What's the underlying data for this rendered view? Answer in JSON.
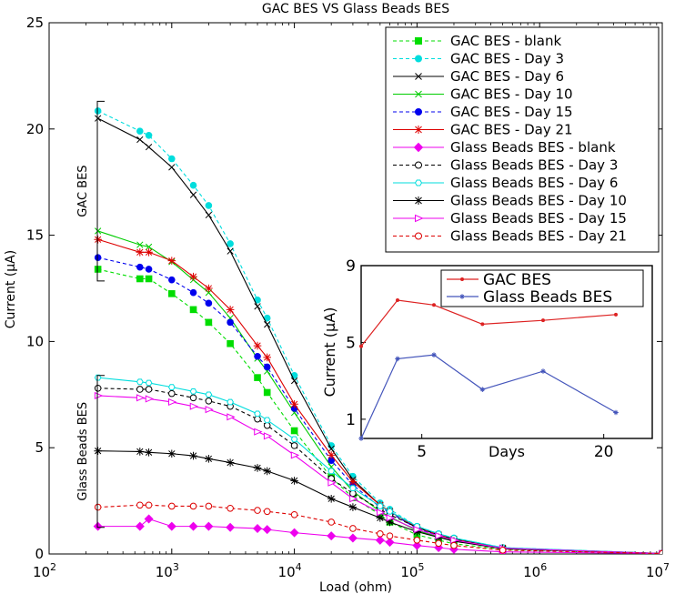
{
  "chart_data": [
    {
      "type": "line",
      "title": "GAC BES VS Glass Beads BES",
      "xlabel": "Load (ohm)",
      "ylabel": "Current (μA)",
      "xscale": "log",
      "xlim": [
        100,
        10000000
      ],
      "ylim": [
        0,
        25
      ],
      "x_tick_values": [
        100,
        1000,
        10000,
        100000,
        1000000,
        10000000
      ],
      "x_tick_labels": [
        {
          "base": "10",
          "exp": "2"
        },
        {
          "base": "10",
          "exp": "3"
        },
        {
          "base": "10",
          "exp": "4"
        },
        {
          "base": "10",
          "exp": "5"
        },
        {
          "base": "10",
          "exp": "6"
        },
        {
          "base": "10",
          "exp": "7"
        }
      ],
      "y_ticks": [
        0,
        5,
        10,
        15,
        20,
        25
      ],
      "y_tick_labels": [
        "0",
        "5",
        "10",
        "15",
        "20",
        "25"
      ],
      "legend_position": "top-right",
      "x": [
        250,
        550,
        650,
        1000,
        1500,
        2000,
        3000,
        5000,
        6000,
        10000,
        20000,
        30000,
        50000,
        60000,
        100000,
        150000,
        200000,
        500000,
        10000000
      ],
      "series": [
        {
          "name": "GAC BES - blank",
          "color": "#00dd00",
          "dash": "4,3",
          "marker": "square",
          "fill": "#00dd00",
          "values": [
            13.4,
            12.95,
            12.95,
            12.25,
            11.5,
            10.9,
            9.9,
            8.3,
            7.6,
            5.8,
            3.6,
            2.65,
            1.85,
            1.5,
            0.9,
            0.65,
            0.48,
            0.22,
            0.02
          ]
        },
        {
          "name": "GAC BES - Day 3",
          "color": "#00dddd",
          "dash": "4,3",
          "marker": "circle",
          "fill": "#00dddd",
          "values": [
            20.85,
            19.9,
            19.7,
            18.6,
            17.35,
            16.4,
            14.6,
            11.95,
            11.1,
            8.4,
            5.1,
            3.65,
            2.4,
            2.1,
            1.3,
            0.95,
            0.75,
            0.3,
            0.02
          ]
        },
        {
          "name": "GAC BES - Day 6",
          "color": "#000000",
          "dash": "",
          "marker": "x",
          "fill": "none",
          "values": [
            20.5,
            19.5,
            19.15,
            18.2,
            16.9,
            15.95,
            14.25,
            11.65,
            10.8,
            8.15,
            4.95,
            3.5,
            2.3,
            2.0,
            1.25,
            0.9,
            0.7,
            0.28,
            0.02
          ]
        },
        {
          "name": "GAC BES - Day 10",
          "color": "#00cc00",
          "dash": "",
          "marker": "x",
          "fill": "none",
          "values": [
            15.2,
            14.55,
            14.45,
            13.75,
            12.9,
            12.3,
            11.1,
            9.2,
            8.6,
            6.65,
            4.1,
            2.95,
            2.0,
            1.75,
            1.1,
            0.8,
            0.62,
            0.25,
            0.02
          ]
        },
        {
          "name": "GAC BES - Day 15",
          "color": "#0000ee",
          "dash": "4,3",
          "marker": "circle",
          "fill": "#0000ee",
          "values": [
            13.95,
            13.5,
            13.4,
            12.9,
            12.3,
            11.8,
            10.9,
            9.3,
            8.8,
            6.85,
            4.4,
            3.25,
            2.2,
            1.95,
            1.2,
            0.88,
            0.68,
            0.27,
            0.02
          ]
        },
        {
          "name": "GAC BES - Day 21",
          "color": "#dd0000",
          "dash": "",
          "marker": "star",
          "fill": "none",
          "values": [
            14.8,
            14.2,
            14.2,
            13.8,
            13.05,
            12.5,
            11.5,
            9.8,
            9.25,
            7.05,
            4.65,
            3.4,
            2.3,
            2.0,
            1.25,
            0.9,
            0.7,
            0.28,
            0.02
          ]
        },
        {
          "name": "Glass Beads BES - blank",
          "color": "#ee00ee",
          "dash": "",
          "marker": "diamond",
          "fill": "#ee00ee",
          "values": [
            1.3,
            1.3,
            1.65,
            1.3,
            1.3,
            1.3,
            1.25,
            1.2,
            1.15,
            1.0,
            0.85,
            0.75,
            0.65,
            0.55,
            0.4,
            0.3,
            0.22,
            0.1,
            0.02
          ]
        },
        {
          "name": "Glass Beads BES - Day 3",
          "color": "#000000",
          "dash": "4,3",
          "marker": "circle",
          "fill": "#ffffff",
          "values": [
            7.8,
            7.75,
            7.75,
            7.55,
            7.35,
            7.2,
            6.95,
            6.35,
            6.05,
            5.1,
            3.55,
            2.85,
            2.1,
            1.85,
            1.25,
            0.9,
            0.7,
            0.28,
            0.02
          ]
        },
        {
          "name": "Glass Beads BES - Day 6",
          "color": "#00dddd",
          "dash": "",
          "marker": "hexagon",
          "fill": "#ffffff",
          "values": [
            8.3,
            8.1,
            8.05,
            7.85,
            7.65,
            7.5,
            7.15,
            6.6,
            6.3,
            5.4,
            3.9,
            3.1,
            2.25,
            2.0,
            1.3,
            0.95,
            0.75,
            0.3,
            0.02
          ]
        },
        {
          "name": "Glass Beads BES - Day 10",
          "color": "#000000",
          "dash": "",
          "marker": "star",
          "fill": "none",
          "values": [
            4.85,
            4.82,
            4.78,
            4.72,
            4.62,
            4.48,
            4.3,
            4.05,
            3.9,
            3.45,
            2.6,
            2.2,
            1.7,
            1.5,
            1.05,
            0.78,
            0.6,
            0.25,
            0.02
          ]
        },
        {
          "name": "Glass Beads BES - Day 15",
          "color": "#ee00ee",
          "dash": "",
          "marker": "triangle",
          "fill": "#ffffff",
          "values": [
            7.45,
            7.35,
            7.3,
            7.15,
            6.95,
            6.8,
            6.45,
            5.75,
            5.55,
            4.65,
            3.35,
            2.6,
            1.95,
            1.7,
            1.15,
            0.85,
            0.65,
            0.27,
            0.02
          ]
        },
        {
          "name": "Glass Beads BES - Day 21",
          "color": "#dd0000",
          "dash": "4,3",
          "marker": "circle",
          "fill": "#ffffff",
          "values": [
            2.2,
            2.3,
            2.3,
            2.25,
            2.25,
            2.25,
            2.15,
            2.05,
            2.0,
            1.85,
            1.5,
            1.2,
            0.95,
            0.85,
            0.65,
            0.5,
            0.4,
            0.18,
            0.02
          ]
        }
      ],
      "annotations": [
        {
          "text": "GAC BES",
          "y_range": [
            12.85,
            21.3
          ]
        },
        {
          "text": "Glass Beads BES",
          "y_range": [
            1.25,
            8.4
          ]
        }
      ]
    },
    {
      "type": "line",
      "title": "",
      "xlabel": "Days",
      "ylabel": "Current (μA)",
      "xlim": [
        0,
        24
      ],
      "ylim": [
        0,
        9
      ],
      "x_ticks": [
        5,
        20
      ],
      "x_tick_labels": [
        "5",
        "20"
      ],
      "y_ticks": [
        1,
        5,
        9
      ],
      "y_tick_labels": [
        "1",
        "5",
        "9"
      ],
      "legend_position": "top",
      "series": [
        {
          "name": "GAC BES",
          "color": "#dd2222",
          "marker": "dot",
          "x": [
            0,
            3,
            6,
            10,
            15,
            21
          ],
          "values": [
            4.8,
            7.2,
            6.95,
            5.95,
            6.15,
            6.45
          ]
        },
        {
          "name": "Glass Beads BES",
          "color": "#4455bb",
          "marker": "star",
          "x": [
            0,
            3,
            6,
            10,
            15,
            21
          ],
          "values": [
            0.0,
            4.15,
            4.35,
            2.55,
            3.5,
            1.35
          ]
        }
      ]
    }
  ]
}
